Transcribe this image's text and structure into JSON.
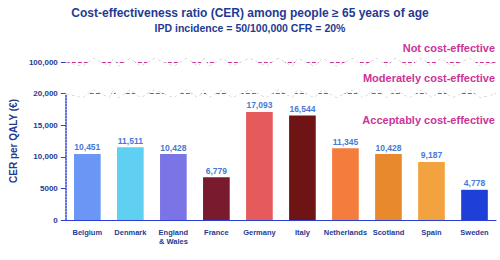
{
  "chart_data": {
    "type": "bar",
    "title": "Cost-effectiveness ratio (CER) among people ≥ 65 years of age",
    "subtitle": "IPD incidence = 50/100,000 CFR = 20%",
    "y_label": "CER per QALY (€)",
    "categories": [
      "Belgium",
      "Denmark",
      "England & Wales",
      "France",
      "Germany",
      "Italy",
      "Netherlands",
      "Scotland",
      "Spain",
      "Sweden"
    ],
    "values": [
      10451,
      11511,
      10428,
      6779,
      17093,
      16544,
      11345,
      10428,
      9187,
      4778
    ],
    "value_labels": [
      "10,451",
      "11,511",
      "10,428",
      "6,779",
      "17,093",
      "16,544",
      "11,345",
      "10,428",
      "9,187",
      "4,778"
    ],
    "colors": [
      "#6b96f5",
      "#5fd0f2",
      "#7b74e6",
      "#7a1a2f",
      "#e55a5a",
      "#6e1414",
      "#f47c3c",
      "#e8892e",
      "#f2a23e",
      "#1f40d8"
    ],
    "ylim": [
      0,
      100000
    ],
    "yticks": [
      0,
      5000,
      {
        "value": 10000,
        "label": "10,000"
      },
      {
        "value": 15000,
        "label": "15,000"
      },
      {
        "value": 20000,
        "label": "20,000"
      },
      {
        "value": 100000,
        "label": "100,000"
      }
    ],
    "y_break": [
      20000,
      100000
    ],
    "reference_lines": [
      20000,
      100000
    ],
    "annotations": [
      "Not cost-effective",
      "Moderately cost-effective",
      "Acceptably cost-effective"
    ],
    "data_labels": true,
    "grid": false
  }
}
